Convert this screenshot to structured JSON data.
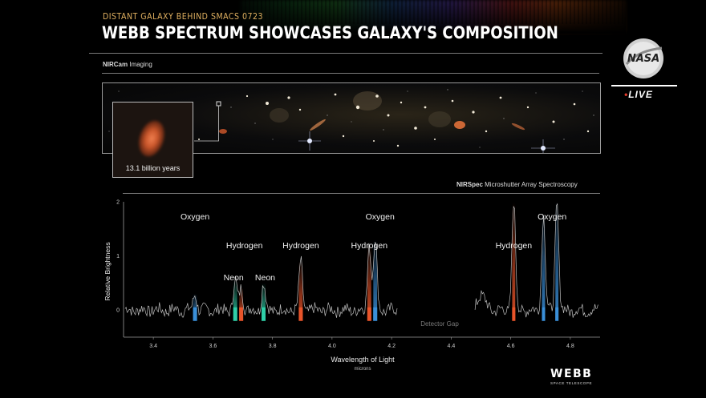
{
  "header": {
    "kicker": "DISTANT GALAXY BEHIND SMACS 0723",
    "title": "WEBB SPECTRUM SHOWCASES GALAXY'S COMPOSITION"
  },
  "imaging": {
    "label_bold": "NIRCam",
    "label_rest": " Imaging",
    "inset_label": "13.1 billion years"
  },
  "spectrum_section": {
    "label_bold": "NIRSpec",
    "label_rest": " Microshutter Array Spectroscopy"
  },
  "branding": {
    "nasa": "NASA",
    "live_dot": "•",
    "live": "LIVE",
    "webb": "WEBB",
    "webb_sub": "SPACE TELESCOPE"
  },
  "colors": {
    "oxygen": "#3a8fd8",
    "hydrogen": "#e8542a",
    "neon": "#2fcfa8",
    "trace": "#bdbdbd",
    "kicker": "#e0b060"
  },
  "chart_data": {
    "type": "line",
    "title": "",
    "xlabel": "Wavelength of Light",
    "xunit": "microns",
    "ylabel": "Relative Brightness",
    "xlim": [
      3.3,
      4.9
    ],
    "ylim": [
      -0.5,
      2
    ],
    "xticks": [
      "3.4",
      "3.6",
      "3.8",
      "4.0",
      "4.2",
      "4.4",
      "4.6",
      "4.8"
    ],
    "yticks": [
      "0",
      "1",
      "2"
    ],
    "grid": false,
    "detector_gap": {
      "label": "Detector Gap",
      "range": [
        4.22,
        4.48
      ]
    },
    "emission_lines": [
      {
        "element": "Oxygen",
        "x": 3.54,
        "peak": 0.3,
        "color": "oxygen",
        "label": "Oxygen"
      },
      {
        "element": "Neon",
        "x": 3.675,
        "peak": 0.55,
        "color": "neon",
        "label": "Neon"
      },
      {
        "element": "Hydrogen",
        "x": 3.695,
        "peak": 0.42,
        "color": "hydrogen",
        "label": "Hydrogen"
      },
      {
        "element": "Neon",
        "x": 3.77,
        "peak": 0.5,
        "color": "neon",
        "label": "Neon"
      },
      {
        "element": "Hydrogen",
        "x": 3.895,
        "peak": 0.9,
        "color": "hydrogen",
        "label": "Hydrogen"
      },
      {
        "element": "Hydrogen",
        "x": 4.125,
        "peak": 1.2,
        "color": "hydrogen",
        "label": "Hydrogen"
      },
      {
        "element": "Oxygen",
        "x": 4.145,
        "peak": 1.3,
        "color": "oxygen",
        "label": "Oxygen"
      },
      {
        "element": "Hydrogen",
        "x": 4.61,
        "peak": 2.0,
        "color": "hydrogen",
        "label": "Hydrogen"
      },
      {
        "element": "Oxygen",
        "x": 4.71,
        "peak": 1.75,
        "color": "oxygen",
        "label": ""
      },
      {
        "element": "Oxygen",
        "x": 4.755,
        "peak": 2.0,
        "color": "oxygen",
        "label": "Oxygen"
      }
    ]
  }
}
